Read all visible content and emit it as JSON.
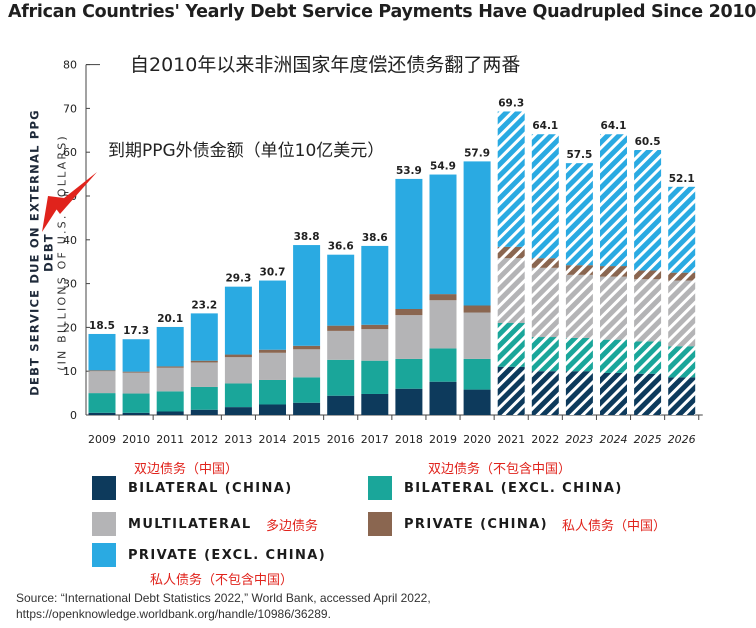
{
  "title": "African Countries' Yearly Debt Service Payments Have Quadrupled Since 2010",
  "annotations": {
    "cn_title": "自2010年以来非洲国家年度偿还债务翻了两番",
    "cn_axis": "到期PPG外债金额（单位10亿美元）"
  },
  "y_axis": {
    "line1": "DEBT SERVICE DUE ON EXTERNAL PPG DEBT",
    "line2": "(IN BILLIONS OF U.S. DOLLARS)"
  },
  "legend": {
    "bilateral_china": {
      "label": "BILATERAL (CHINA)",
      "cn": "双边债务（中国）",
      "color": "#0d3a5c"
    },
    "bilateral_excl": {
      "label": "BILATERAL (EXCL. CHINA)",
      "cn": "双边债务（不包含中国）",
      "color": "#1aa69a"
    },
    "multilateral": {
      "label": "MULTILATERAL",
      "cn": "多边债务",
      "color": "#b4b4b6"
    },
    "private_china": {
      "label": "PRIVATE (CHINA)",
      "cn": "私人债务（中国）",
      "color": "#8a6650"
    },
    "private_excl": {
      "label": "PRIVATE (EXCL. CHINA)",
      "cn": "私人债务（不包含中国）",
      "color": "#2aaae2"
    }
  },
  "source": {
    "line1": "Source: “International Debt Statistics 2022,” World Bank, accessed April 2022,",
    "line2": "https://openknowledge.worldbank.org/handle/10986/36289."
  },
  "chart_data": {
    "type": "bar",
    "stacked": true,
    "ylim": [
      0,
      80
    ],
    "yticks": [
      0,
      10,
      20,
      30,
      40,
      50,
      60,
      70,
      80
    ],
    "categories": [
      "2009",
      "2010",
      "2011",
      "2012",
      "2013",
      "2014",
      "2015",
      "2016",
      "2017",
      "2018",
      "2019",
      "2020",
      "2021",
      "2022",
      "2023",
      "2024",
      "2025",
      "2026"
    ],
    "projected_from": "2021",
    "totals": [
      18.5,
      17.3,
      20.1,
      23.2,
      29.3,
      30.7,
      38.8,
      36.6,
      38.6,
      53.9,
      54.9,
      57.9,
      69.3,
      64.1,
      57.5,
      64.1,
      60.5,
      52.1
    ],
    "series": [
      {
        "name": "BILATERAL (CHINA)",
        "color": "#0d3a5c",
        "values": [
          0.5,
          0.5,
          0.8,
          1.2,
          1.8,
          2.4,
          2.8,
          4.4,
          4.8,
          6.0,
          7.6,
          5.8,
          11.0,
          10.0,
          10.0,
          9.6,
          9.4,
          8.6
        ]
      },
      {
        "name": "BILATERAL (EXCL. CHINA)",
        "color": "#1aa69a",
        "values": [
          4.5,
          4.4,
          4.6,
          5.2,
          5.4,
          5.6,
          5.8,
          8.2,
          7.6,
          6.8,
          7.6,
          7.0,
          10.0,
          7.8,
          7.6,
          7.6,
          7.4,
          7.1
        ]
      },
      {
        "name": "MULTILATERAL",
        "color": "#b4b4b6",
        "values": [
          5.0,
          4.8,
          5.4,
          5.6,
          6.0,
          6.2,
          6.4,
          6.6,
          7.2,
          10.0,
          11.0,
          10.6,
          14.8,
          15.8,
          14.4,
          14.4,
          14.2,
          15.0
        ]
      },
      {
        "name": "PRIVATE (CHINA)",
        "color": "#8a6650",
        "values": [
          0.2,
          0.2,
          0.3,
          0.4,
          0.6,
          0.7,
          0.8,
          1.2,
          1.0,
          1.4,
          1.4,
          1.6,
          2.6,
          2.2,
          2.2,
          2.4,
          2.0,
          1.8
        ]
      },
      {
        "name": "PRIVATE (EXCL. CHINA)",
        "color": "#2aaae2",
        "values": [
          8.3,
          7.4,
          9.0,
          10.8,
          15.5,
          15.8,
          23.0,
          16.2,
          18.0,
          29.7,
          27.3,
          32.9,
          30.9,
          28.3,
          23.3,
          30.1,
          27.5,
          19.6
        ]
      }
    ]
  }
}
